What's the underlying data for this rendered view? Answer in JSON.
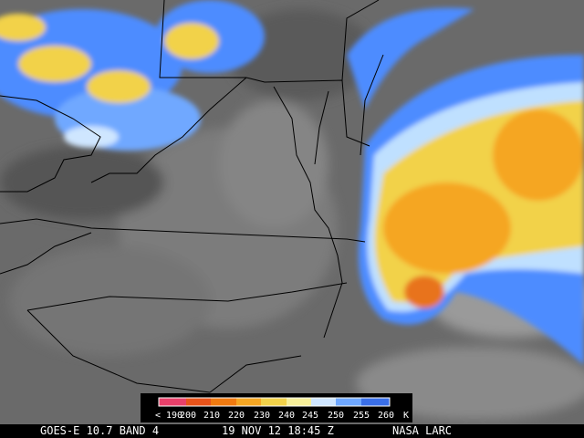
{
  "colorbar": {
    "labels": [
      "< 190",
      "200",
      "210",
      "220",
      "230",
      "240",
      "245",
      "250",
      "255",
      "260",
      "K"
    ]
  },
  "footer": {
    "satellite": "GOES-E 10.7 BAND 4",
    "time": "19 NOV 12 18:45 Z",
    "source": "NASA LARC"
  }
}
